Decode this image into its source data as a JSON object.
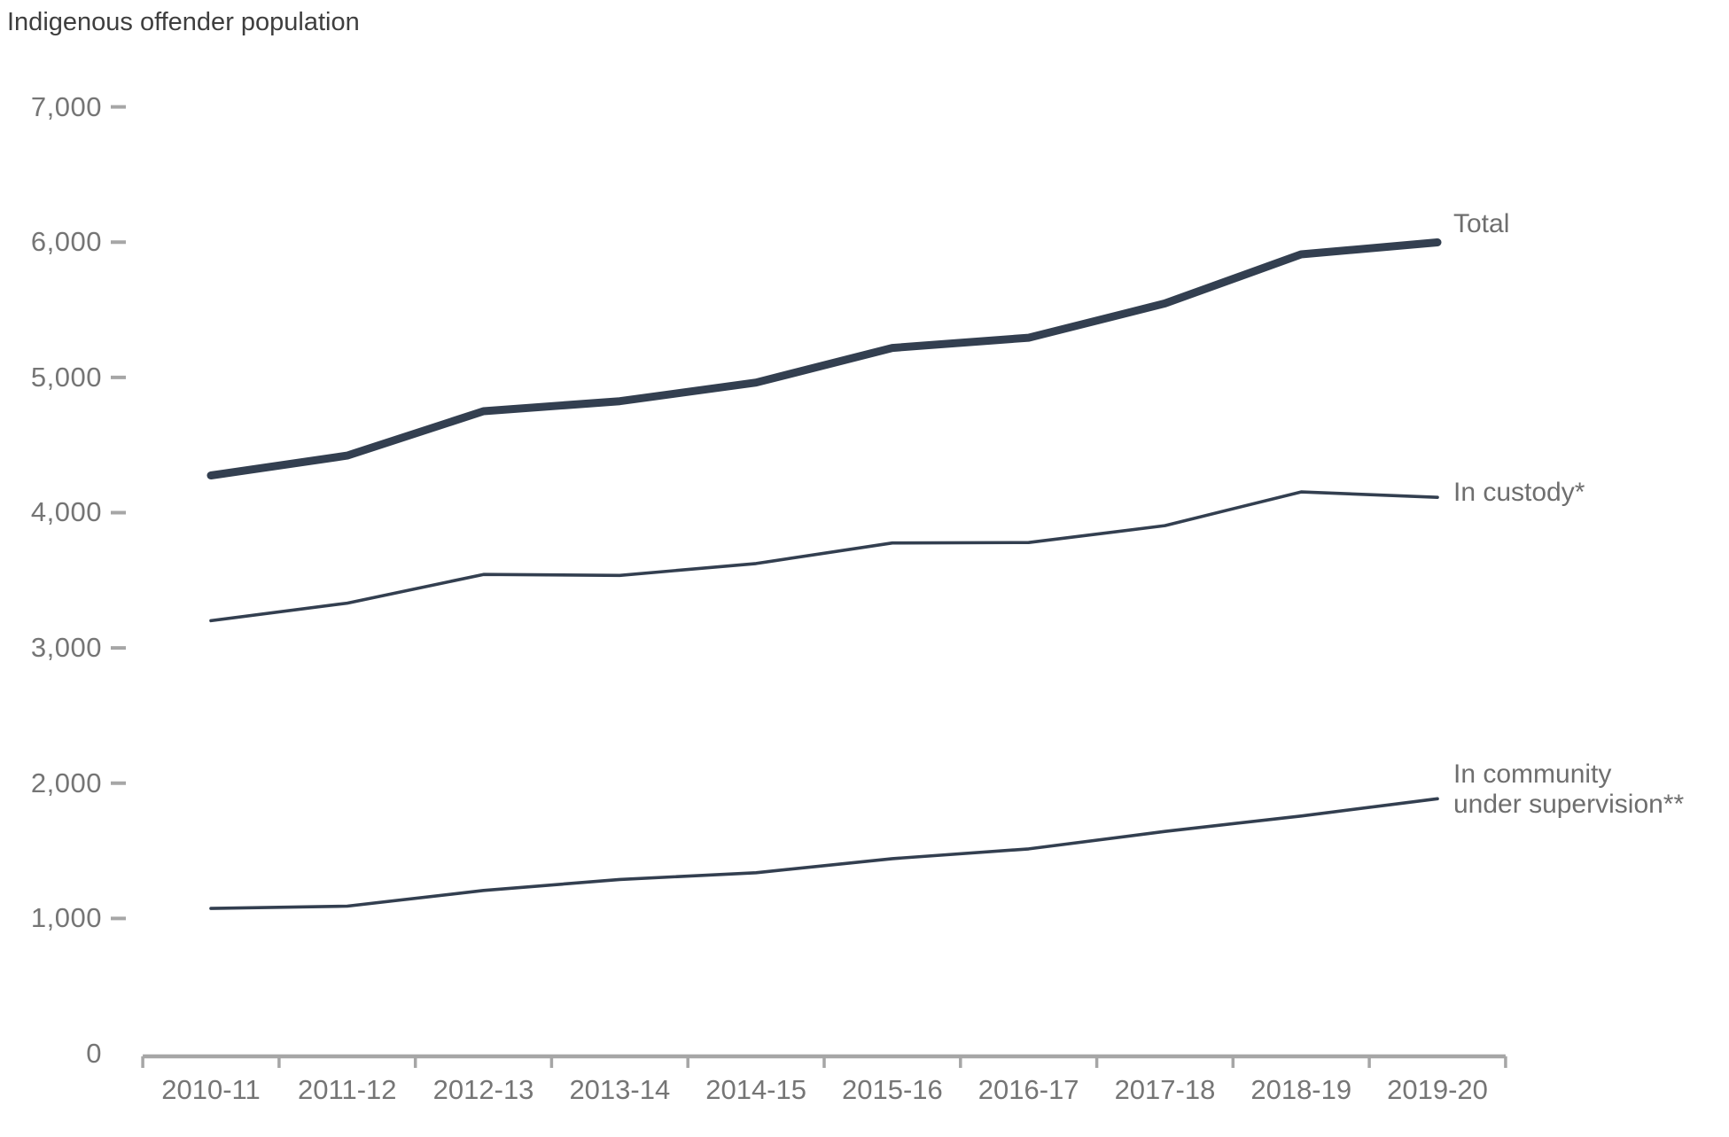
{
  "title": "Indigenous offender population",
  "chart_data": {
    "type": "line",
    "categories": [
      "2010-11",
      "2011-12",
      "2012-13",
      "2013-14",
      "2014-15",
      "2015-16",
      "2016-17",
      "2017-18",
      "2018-19",
      "2019-20"
    ],
    "series": [
      {
        "name": "total",
        "label": "Total",
        "emphasis": "thick",
        "values": [
          4275,
          4422,
          4750,
          4824,
          4962,
          5218,
          5293,
          5547,
          5910,
          5998
        ]
      },
      {
        "name": "in-custody",
        "label": "In custody*",
        "emphasis": "thin",
        "values": [
          3201,
          3331,
          3543,
          3536,
          3624,
          3776,
          3779,
          3904,
          4153,
          4113
        ]
      },
      {
        "name": "in-community",
        "label": "In community\nunder supervision**",
        "emphasis": "thin",
        "values": [
          1074,
          1091,
          1207,
          1288,
          1338,
          1442,
          1514,
          1643,
          1757,
          1885
        ]
      }
    ],
    "title": "Indigenous offender population",
    "xlabel": "",
    "ylabel": "",
    "ylim": [
      0,
      7000
    ],
    "ytick_interval": 1000,
    "ytick_labels": [
      "0",
      "1,000",
      "2,000",
      "3,000",
      "4,000",
      "5,000",
      "6,000",
      "7,000"
    ],
    "grid": false,
    "legend_position": "end-of-line-labels"
  },
  "colors": {
    "line": "#333F50",
    "title_text": "#3E3E3E",
    "axis_text": "#757575",
    "series_label_text": "#6E6E6E",
    "axis_line": "#A6A6A6"
  }
}
